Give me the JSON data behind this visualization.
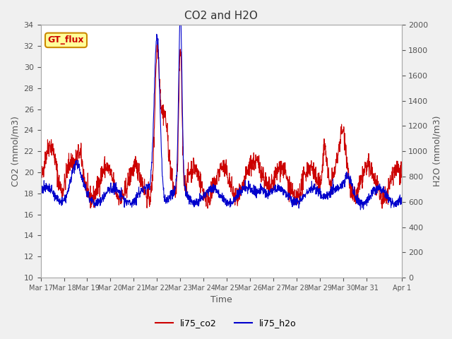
{
  "title": "CO2 and H2O",
  "xlabel": "Time",
  "ylabel_left": "CO2 (mmol/m3)",
  "ylabel_right": "H2O (mmol/m3)",
  "ylim_left": [
    10,
    34
  ],
  "ylim_right": [
    0,
    2000
  ],
  "yticks_left": [
    10,
    12,
    14,
    16,
    18,
    20,
    22,
    24,
    26,
    28,
    30,
    32,
    34
  ],
  "yticks_right": [
    0,
    200,
    400,
    600,
    800,
    1000,
    1200,
    1400,
    1600,
    1800,
    2000
  ],
  "color_co2": "#cc0000",
  "color_h2o": "#0000cc",
  "legend_entries": [
    "li75_co2",
    "li75_h2o"
  ],
  "annotation_text": "GT_flux",
  "annotation_color": "#cc0000",
  "annotation_bg": "#ffff99",
  "annotation_border": "#cc8800",
  "background_color": "#e8e8e8",
  "plot_bg_color": "#ffffff",
  "grid_color": "#ffffff",
  "seed": 42
}
